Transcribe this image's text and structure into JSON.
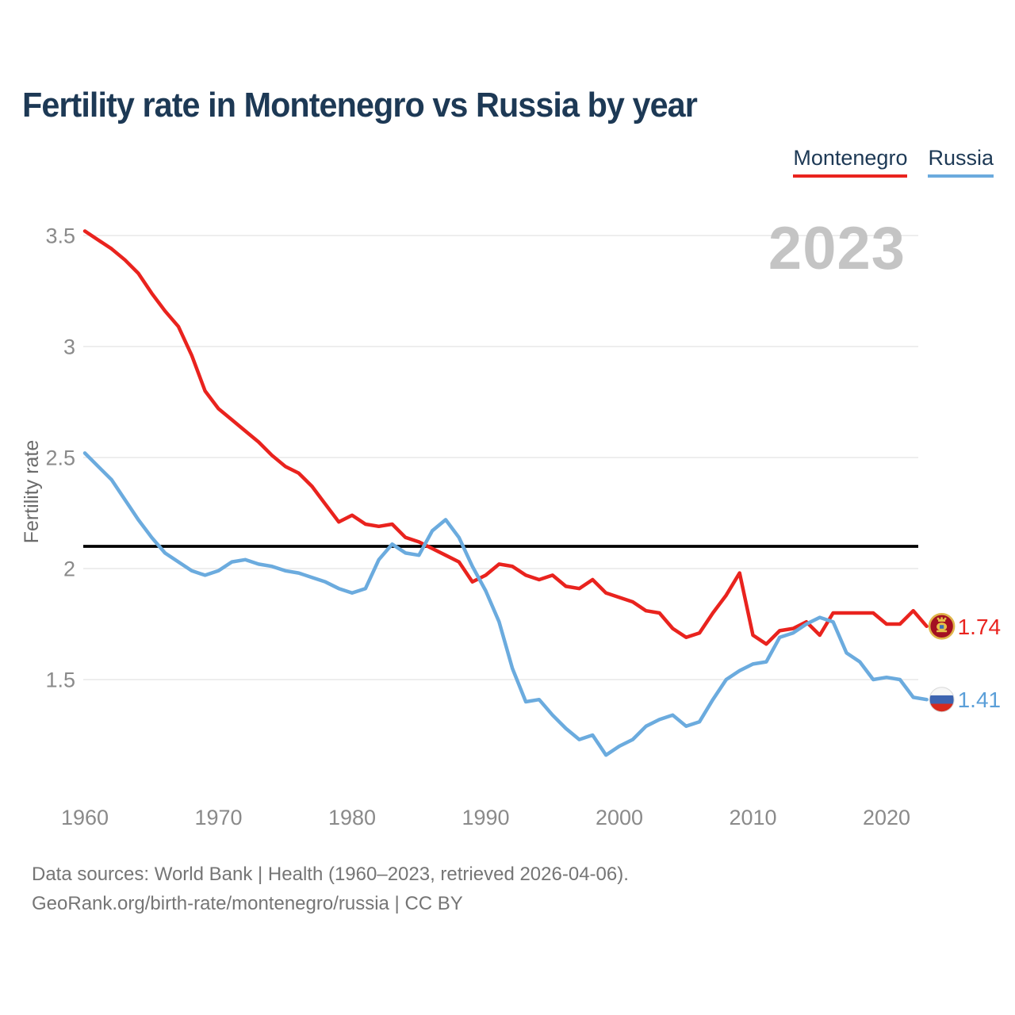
{
  "title": "Fertility rate in Montenegro vs Russia by year",
  "watermark": "2023",
  "legend": {
    "items": [
      {
        "label": "Montenegro",
        "color": "#e9231e"
      },
      {
        "label": "Russia",
        "color": "#6babde"
      }
    ]
  },
  "y_axis": {
    "label": "Fertility rate",
    "ticks": [
      3.5,
      3,
      2.5,
      2,
      1.5
    ]
  },
  "x_axis": {
    "ticks": [
      1960,
      1970,
      1980,
      1990,
      2000,
      2010,
      2020
    ]
  },
  "reference_line": {
    "value": 2.1,
    "color": "#000000"
  },
  "end_labels": [
    {
      "series": "Montenegro",
      "value": "1.74",
      "flag": "montenegro-flag",
      "color": "#e9231e"
    },
    {
      "series": "Russia",
      "value": "1.41",
      "flag": "russia-flag",
      "color": "#5b9fd8"
    }
  ],
  "source": {
    "line1": "Data sources: World Bank | Health (1960–2023, retrieved 2026-04-06).",
    "line2": "GeoRank.org/birth-rate/montenegro/russia | CC BY"
  },
  "chart_data": {
    "type": "line",
    "title": "Fertility rate in Montenegro vs Russia by year",
    "xlabel": "",
    "ylabel": "Fertility rate",
    "xlim": [
      1958,
      2026
    ],
    "ylim": [
      1.0,
      3.6
    ],
    "grid": "horizontal",
    "legend_position": "top-right",
    "reference_line_y": 2.1,
    "x": [
      1960,
      1961,
      1962,
      1963,
      1964,
      1965,
      1966,
      1967,
      1968,
      1969,
      1970,
      1971,
      1972,
      1973,
      1974,
      1975,
      1976,
      1977,
      1978,
      1979,
      1980,
      1981,
      1982,
      1983,
      1984,
      1985,
      1986,
      1987,
      1988,
      1989,
      1990,
      1991,
      1992,
      1993,
      1994,
      1995,
      1996,
      1997,
      1998,
      1999,
      2000,
      2001,
      2002,
      2003,
      2004,
      2005,
      2006,
      2007,
      2008,
      2009,
      2010,
      2011,
      2012,
      2013,
      2014,
      2015,
      2016,
      2017,
      2018,
      2019,
      2020,
      2021,
      2022,
      2023
    ],
    "series": [
      {
        "name": "Montenegro",
        "color": "#e9231e",
        "end_label": "1.74",
        "values": [
          3.52,
          3.48,
          3.44,
          3.39,
          3.33,
          3.24,
          3.16,
          3.09,
          2.96,
          2.8,
          2.72,
          2.67,
          2.62,
          2.57,
          2.51,
          2.46,
          2.43,
          2.37,
          2.29,
          2.21,
          2.24,
          2.2,
          2.19,
          2.2,
          2.14,
          2.12,
          2.09,
          2.06,
          2.03,
          1.94,
          1.97,
          2.02,
          2.01,
          1.97,
          1.95,
          1.97,
          1.92,
          1.91,
          1.95,
          1.89,
          1.87,
          1.85,
          1.81,
          1.8,
          1.73,
          1.69,
          1.71,
          1.8,
          1.88,
          1.98,
          1.7,
          1.66,
          1.72,
          1.73,
          1.76,
          1.7,
          1.8,
          1.8,
          1.8,
          1.8,
          1.75,
          1.75,
          1.81,
          1.74
        ]
      },
      {
        "name": "Russia",
        "color": "#6babde",
        "end_label": "1.41",
        "values": [
          2.52,
          2.46,
          2.4,
          2.31,
          2.22,
          2.14,
          2.07,
          2.03,
          1.99,
          1.97,
          1.99,
          2.03,
          2.04,
          2.02,
          2.01,
          1.99,
          1.98,
          1.96,
          1.94,
          1.91,
          1.89,
          1.91,
          2.04,
          2.11,
          2.07,
          2.06,
          2.17,
          2.22,
          2.14,
          2.01,
          1.9,
          1.76,
          1.55,
          1.4,
          1.41,
          1.34,
          1.28,
          1.23,
          1.25,
          1.16,
          1.2,
          1.23,
          1.29,
          1.32,
          1.34,
          1.29,
          1.31,
          1.41,
          1.5,
          1.54,
          1.57,
          1.58,
          1.69,
          1.71,
          1.75,
          1.78,
          1.76,
          1.62,
          1.58,
          1.5,
          1.51,
          1.5,
          1.42,
          1.41
        ]
      }
    ]
  }
}
